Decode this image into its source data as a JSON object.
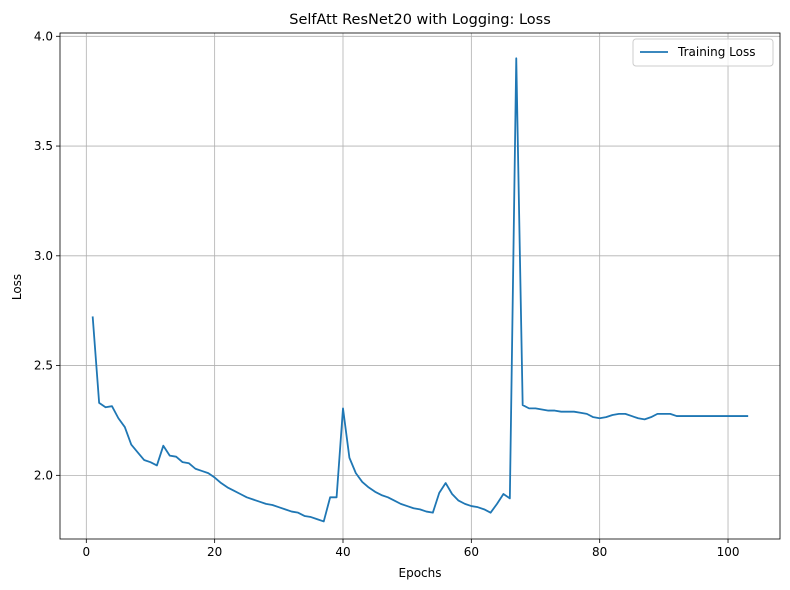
{
  "chart_data": {
    "type": "line",
    "title": "SelfAtt ResNet20 with Logging: Loss",
    "xlabel": "Epochs",
    "ylabel": "Loss",
    "xlim": [
      -4.1,
      108.1
    ],
    "ylim": [
      1.71,
      4.015
    ],
    "xticks": [
      0,
      20,
      40,
      60,
      80,
      100
    ],
    "yticks": [
      2.0,
      2.5,
      3.0,
      3.5,
      4.0
    ],
    "ytick_labels": [
      "2.0",
      "2.5",
      "3.0",
      "3.5",
      "4.0"
    ],
    "grid": true,
    "legend_position": "top-right",
    "colors": {
      "series": "#1f77b4",
      "grid": "#b0b0b0",
      "axis": "#000000"
    },
    "series": [
      {
        "name": "Training Loss",
        "x": [
          1,
          2,
          3,
          4,
          5,
          6,
          7,
          8,
          9,
          10,
          11,
          12,
          13,
          14,
          15,
          16,
          17,
          18,
          19,
          20,
          21,
          22,
          23,
          24,
          25,
          26,
          27,
          28,
          29,
          30,
          31,
          32,
          33,
          34,
          35,
          36,
          37,
          38,
          39,
          40,
          41,
          42,
          43,
          44,
          45,
          46,
          47,
          48,
          49,
          50,
          51,
          52,
          53,
          54,
          55,
          56,
          57,
          58,
          59,
          60,
          61,
          62,
          63,
          64,
          65,
          66,
          67,
          68,
          69,
          70,
          71,
          72,
          73,
          74,
          75,
          76,
          77,
          78,
          79,
          80,
          81,
          82,
          83,
          84,
          85,
          86,
          87,
          88,
          89,
          90,
          91,
          92,
          93,
          94,
          95,
          96,
          97,
          98,
          99,
          100,
          101,
          102,
          103
        ],
        "y": [
          2.72,
          2.33,
          2.31,
          2.315,
          2.26,
          2.22,
          2.14,
          2.105,
          2.07,
          2.06,
          2.045,
          2.135,
          2.09,
          2.085,
          2.06,
          2.055,
          2.03,
          2.02,
          2.01,
          1.99,
          1.965,
          1.945,
          1.93,
          1.915,
          1.9,
          1.89,
          1.88,
          1.87,
          1.865,
          1.855,
          1.845,
          1.835,
          1.83,
          1.815,
          1.81,
          1.8,
          1.79,
          1.9,
          1.9,
          2.305,
          2.08,
          2.01,
          1.97,
          1.945,
          1.925,
          1.91,
          1.9,
          1.885,
          1.87,
          1.86,
          1.85,
          1.845,
          1.835,
          1.83,
          1.92,
          1.965,
          1.915,
          1.885,
          1.87,
          1.86,
          1.855,
          1.845,
          1.83,
          1.87,
          1.915,
          1.895,
          3.9,
          2.32,
          2.305,
          2.305,
          2.3,
          2.295,
          2.295,
          2.29,
          2.29,
          2.29,
          2.285,
          2.28,
          2.265,
          2.26,
          2.265,
          2.275,
          2.28,
          2.28,
          2.27,
          2.26,
          2.255,
          2.265,
          2.28,
          2.28,
          2.28,
          2.27,
          2.27,
          2.27,
          2.27,
          2.27,
          2.27,
          2.27,
          2.27,
          2.27,
          2.27,
          2.27,
          2.27
        ]
      }
    ]
  }
}
